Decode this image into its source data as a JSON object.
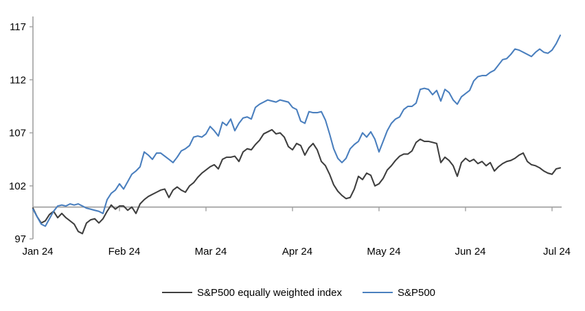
{
  "chart_data": {
    "type": "line",
    "title": "",
    "xlabel": "",
    "ylabel": "",
    "x_tick_labels": [
      "Jan 24",
      "Feb 24",
      "Mar 24",
      "Apr 24",
      "May 24",
      "Jun 24",
      "Jul 24"
    ],
    "y_ticks": [
      97,
      102,
      107,
      112,
      117
    ],
    "ylim": [
      97,
      118
    ],
    "baseline_value": 100,
    "grid": false,
    "legend_position": "bottom",
    "axis_color": "#a0a0a0",
    "series": [
      {
        "name": "S&P500 equally weighted index",
        "color": "#3f3f3f",
        "values": [
          99.9,
          99.1,
          98.5,
          98.7,
          99.3,
          99.6,
          99.0,
          99.4,
          99.0,
          98.7,
          98.4,
          97.7,
          97.5,
          98.5,
          98.8,
          98.9,
          98.5,
          98.9,
          99.6,
          100.2,
          99.8,
          100.1,
          100.1,
          99.7,
          100.0,
          99.4,
          100.3,
          100.7,
          101.0,
          101.2,
          101.4,
          101.6,
          101.7,
          100.9,
          101.6,
          101.9,
          101.6,
          101.4,
          102.0,
          102.3,
          102.8,
          103.2,
          103.5,
          103.8,
          104.0,
          103.6,
          104.5,
          104.7,
          104.7,
          104.8,
          104.3,
          105.2,
          105.5,
          105.4,
          105.9,
          106.3,
          106.9,
          107.1,
          107.3,
          106.9,
          107.0,
          106.6,
          105.7,
          105.4,
          106.0,
          105.8,
          104.9,
          105.6,
          106.0,
          105.4,
          104.3,
          103.9,
          103.1,
          102.1,
          101.5,
          101.1,
          100.8,
          100.9,
          101.7,
          102.9,
          102.6,
          103.2,
          103.0,
          102.0,
          102.2,
          102.7,
          103.5,
          103.9,
          104.4,
          104.8,
          105.0,
          105.0,
          105.3,
          106.1,
          106.4,
          106.2,
          106.2,
          106.1,
          106.0,
          104.2,
          104.7,
          104.4,
          103.9,
          102.9,
          104.2,
          104.6,
          104.3,
          104.5,
          104.1,
          104.3,
          103.9,
          104.2,
          103.4,
          103.8,
          104.1,
          104.3,
          104.4,
          104.6,
          104.9,
          105.1,
          104.3,
          104.0,
          103.9,
          103.7,
          103.4,
          103.2,
          103.1,
          103.6,
          103.7
        ]
      },
      {
        "name": "S&P500",
        "color": "#4a7fbe",
        "values": [
          99.8,
          99.1,
          98.4,
          98.2,
          98.9,
          99.6,
          100.1,
          100.2,
          100.1,
          100.3,
          100.2,
          100.3,
          100.1,
          99.9,
          99.8,
          99.7,
          99.6,
          99.4,
          100.7,
          101.3,
          101.6,
          102.2,
          101.7,
          102.4,
          103.1,
          103.4,
          103.8,
          105.2,
          104.9,
          104.5,
          105.1,
          105.1,
          104.8,
          104.5,
          104.2,
          104.7,
          105.3,
          105.5,
          105.8,
          106.6,
          106.7,
          106.6,
          106.9,
          107.6,
          107.2,
          106.7,
          108.0,
          107.7,
          108.3,
          107.2,
          107.9,
          108.4,
          108.5,
          108.3,
          109.4,
          109.7,
          109.9,
          110.1,
          110.0,
          109.9,
          110.1,
          110.0,
          109.9,
          109.4,
          109.2,
          108.1,
          107.9,
          109.0,
          108.9,
          108.9,
          109.0,
          108.2,
          106.9,
          105.5,
          104.6,
          104.2,
          104.6,
          105.5,
          105.9,
          106.2,
          107.0,
          106.6,
          107.1,
          106.4,
          105.2,
          106.2,
          107.2,
          107.9,
          108.3,
          108.5,
          109.2,
          109.5,
          109.5,
          109.8,
          111.1,
          111.2,
          111.1,
          110.6,
          111.0,
          110.0,
          111.1,
          110.8,
          110.1,
          109.7,
          110.4,
          110.7,
          111.0,
          111.9,
          112.3,
          112.4,
          112.4,
          112.7,
          112.9,
          113.4,
          113.9,
          114.0,
          114.4,
          114.9,
          114.8,
          114.6,
          114.4,
          114.2,
          114.6,
          114.9,
          114.6,
          114.5,
          114.8,
          115.4,
          116.2
        ]
      }
    ]
  },
  "legend": {
    "items": [
      {
        "label": "S&P500 equally weighted index",
        "color": "#3f3f3f"
      },
      {
        "label": "S&P500",
        "color": "#4a7fbe"
      }
    ]
  }
}
